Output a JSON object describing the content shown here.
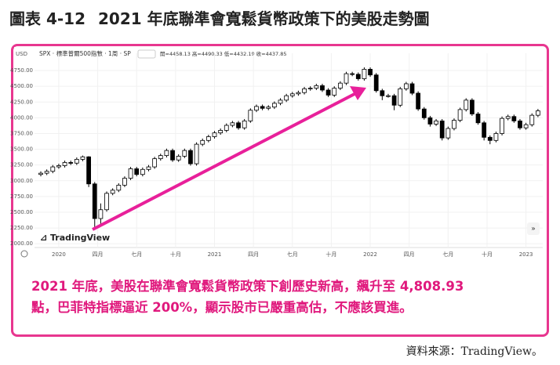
{
  "figure_label": "圖表 4-12",
  "title": "2021 年底聯準會寬鬆貨幣政策下的美股走勢圖",
  "caption": [
    "2021 年底，美股在聯準會寬鬆貨幣政策下創歷史新高，飆升至 4,808.93",
    "點，巴菲特指標逼近 200%，顯示股市已嚴重高估，不應該買進。"
  ],
  "source": "資料來源：TradingView。",
  "chart_data": {
    "type": "candlestick",
    "currency_label": "USD",
    "symbol_label": "SPX · 標準普爾500指數 · 1周 · SP",
    "ohlc_label": "開=4458.13 高=4490.33 低=4432.19 收=4437.85",
    "watermark": "TradingView",
    "up_color": "#ffffff",
    "down_color": "#000000",
    "grid": true,
    "x": [
      -6,
      -4,
      -2,
      0,
      2,
      4,
      6,
      8,
      10,
      12,
      14,
      16,
      18,
      20,
      22,
      24,
      26,
      28,
      30,
      32,
      34,
      36,
      38,
      40,
      42,
      44,
      46,
      48,
      50,
      52,
      54,
      56,
      58,
      60,
      62,
      64,
      66,
      68,
      70,
      72,
      74,
      76,
      78,
      80,
      82,
      84,
      86,
      88,
      90,
      92,
      94,
      96,
      98,
      100,
      102,
      104,
      106,
      108,
      110,
      112,
      114,
      116,
      118,
      120,
      122,
      124,
      126,
      128,
      130,
      132,
      134,
      136,
      138,
      140,
      142,
      144,
      146,
      148,
      150,
      152,
      154,
      156,
      158,
      160
    ],
    "open": [
      3100,
      3120,
      3150,
      3220,
      3240,
      3290,
      3280,
      3340,
      3380,
      2950,
      2400,
      2540,
      2800,
      2850,
      2930,
      3040,
      3190,
      3100,
      3180,
      3220,
      3350,
      3400,
      3480,
      3330,
      3390,
      3480,
      3270,
      3580,
      3640,
      3700,
      3760,
      3800,
      3880,
      3920,
      3840,
      3950,
      4120,
      4180,
      4150,
      4170,
      4230,
      4280,
      4350,
      4380,
      4400,
      4460,
      4470,
      4510,
      4440,
      4360,
      4470,
      4550,
      4700,
      4690,
      4620,
      4770,
      4680,
      4430,
      4350,
      4350,
      4200,
      4460,
      4540,
      4390,
      4140,
      4000,
      3900,
      3950,
      3680,
      3830,
      3960,
      4130,
      4280,
      4060,
      3920,
      3690,
      3640,
      3750,
      3990,
      4020,
      3950,
      3840,
      3890,
      4040
    ],
    "high": [
      3150,
      3180,
      3250,
      3270,
      3320,
      3320,
      3370,
      3400,
      3390,
      2980,
      2640,
      2830,
      2880,
      2960,
      3070,
      3220,
      3220,
      3210,
      3250,
      3380,
      3430,
      3510,
      3510,
      3420,
      3510,
      3510,
      3610,
      3670,
      3730,
      3790,
      3830,
      3910,
      3950,
      3950,
      3980,
      4150,
      4210,
      4210,
      4200,
      4260,
      4310,
      4380,
      4410,
      4430,
      4490,
      4500,
      4540,
      4540,
      4470,
      4500,
      4580,
      4730,
      4730,
      4720,
      4800,
      4800,
      4710,
      4460,
      4380,
      4380,
      4490,
      4570,
      4570,
      4420,
      4170,
      4030,
      3980,
      3980,
      3860,
      3990,
      4160,
      4310,
      4310,
      4090,
      3950,
      3720,
      3780,
      4020,
      4050,
      4050,
      3980,
      3920,
      4070,
      4140
    ],
    "low": [
      3070,
      3090,
      3120,
      3190,
      3210,
      3250,
      3250,
      3310,
      2900,
      2240,
      2280,
      2510,
      2770,
      2820,
      2900,
      3010,
      3070,
      3070,
      3150,
      3190,
      3320,
      3370,
      3300,
      3300,
      3360,
      3240,
      3240,
      3550,
      3610,
      3670,
      3730,
      3770,
      3850,
      3810,
      3810,
      3920,
      4090,
      4120,
      4120,
      4140,
      4200,
      4250,
      4320,
      4350,
      4370,
      4430,
      4440,
      4410,
      4330,
      4330,
      4440,
      4520,
      4660,
      4590,
      4590,
      4650,
      4400,
      4280,
      4320,
      4120,
      4170,
      4430,
      4360,
      4110,
      3970,
      3860,
      3870,
      3640,
      3650,
      3800,
      3930,
      4100,
      4030,
      3890,
      3640,
      3580,
      3610,
      3720,
      3960,
      3920,
      3810,
      3810,
      3860,
      4010
    ],
    "close": [
      3120,
      3150,
      3220,
      3240,
      3290,
      3280,
      3340,
      3380,
      2950,
      2400,
      2540,
      2800,
      2850,
      2930,
      3040,
      3190,
      3100,
      3180,
      3220,
      3350,
      3400,
      3480,
      3330,
      3390,
      3480,
      3270,
      3580,
      3640,
      3700,
      3760,
      3800,
      3880,
      3920,
      3840,
      3950,
      4120,
      4180,
      4150,
      4170,
      4230,
      4280,
      4350,
      4380,
      4400,
      4460,
      4470,
      4510,
      4440,
      4360,
      4470,
      4550,
      4700,
      4690,
      4620,
      4770,
      4680,
      4430,
      4350,
      4350,
      4200,
      4460,
      4540,
      4390,
      4140,
      4000,
      3900,
      3950,
      3680,
      3830,
      3960,
      4130,
      4280,
      4060,
      3920,
      3690,
      3640,
      3750,
      3990,
      4020,
      3950,
      3840,
      3890,
      4040,
      4110
    ],
    "xlim": [
      -8.1,
      161.6
    ],
    "xticks": [
      {
        "value": 0,
        "label": "2020"
      },
      {
        "value": 13,
        "label": "四月"
      },
      {
        "value": 26,
        "label": "七月"
      },
      {
        "value": 39,
        "label": "十月"
      },
      {
        "value": 52,
        "label": "2021"
      },
      {
        "value": 65,
        "label": "四月"
      },
      {
        "value": 78,
        "label": "七月"
      },
      {
        "value": 91,
        "label": "十月"
      },
      {
        "value": 104,
        "label": "2022"
      },
      {
        "value": 117,
        "label": "四月"
      },
      {
        "value": 130,
        "label": "七月"
      },
      {
        "value": 143,
        "label": "十月"
      },
      {
        "value": 156,
        "label": "2023"
      }
    ],
    "ylim": [
      1940,
      4900
    ],
    "yticks": [
      {
        "value": 2000,
        "label": "2000.00"
      },
      {
        "value": 2250,
        "label": "2250.00"
      },
      {
        "value": 2500,
        "label": "2500.00"
      },
      {
        "value": 2750,
        "label": "2750.00"
      },
      {
        "value": 3000,
        "label": "3000.00"
      },
      {
        "value": 3250,
        "label": "3250.00"
      },
      {
        "value": 3500,
        "label": "3500.00"
      },
      {
        "value": 3750,
        "label": "3750.00"
      },
      {
        "value": 4000,
        "label": "4000.00"
      },
      {
        "value": 4250,
        "label": "4250.00"
      },
      {
        "value": 4500,
        "label": "4500.00"
      },
      {
        "value": 4750,
        "label": "4750.00"
      }
    ]
  }
}
